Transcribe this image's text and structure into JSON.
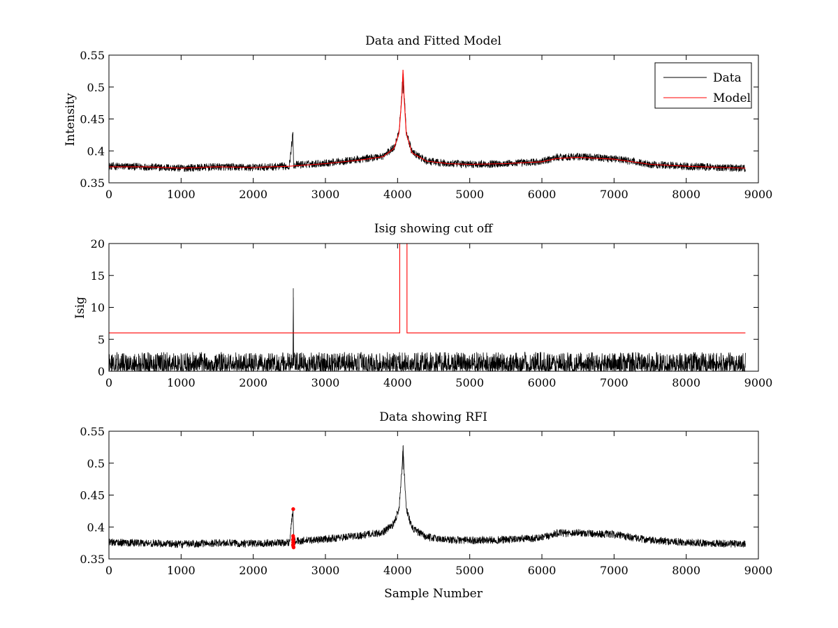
{
  "chart_data": [
    {
      "type": "line",
      "title": "Data and Fitted Model",
      "xlabel": "",
      "ylabel": "Intensity",
      "xlim": [
        0,
        9000
      ],
      "ylim": [
        0.35,
        0.55
      ],
      "xticks": [
        0,
        1000,
        2000,
        3000,
        4000,
        5000,
        6000,
        7000,
        8000,
        9000
      ],
      "xtick_labels": [
        "0",
        "1000",
        "2000",
        "3000",
        "4000",
        "5000",
        "6000",
        "7000",
        "8000",
        "9000"
      ],
      "yticks": [
        0.35,
        0.4,
        0.45,
        0.5,
        0.55
      ],
      "ytick_labels": [
        "0.35",
        "0.4",
        "0.45",
        "0.5",
        "0.55"
      ],
      "legend_position": "top-right",
      "series": [
        {
          "name": "Data",
          "color": "#000000",
          "x": [
            0,
            500,
            1000,
            1500,
            2000,
            2500,
            2550,
            2560,
            2600,
            3000,
            3500,
            3800,
            3950,
            4020,
            4060,
            4075,
            4090,
            4120,
            4200,
            4400,
            4700,
            5000,
            5500,
            6000,
            6200,
            6500,
            7000,
            7500,
            8000,
            8500,
            8820
          ],
          "values": [
            0.376,
            0.375,
            0.373,
            0.375,
            0.374,
            0.376,
            0.428,
            0.377,
            0.378,
            0.381,
            0.387,
            0.392,
            0.405,
            0.43,
            0.49,
            0.527,
            0.49,
            0.43,
            0.398,
            0.384,
            0.38,
            0.379,
            0.38,
            0.383,
            0.39,
            0.391,
            0.388,
            0.379,
            0.376,
            0.374,
            0.373
          ],
          "noise_amplitude": 0.006
        },
        {
          "name": "Model",
          "color": "#ff0000",
          "x": [
            0,
            500,
            1000,
            1500,
            2000,
            2500,
            3000,
            3500,
            3800,
            3950,
            4020,
            4060,
            4075,
            4090,
            4120,
            4200,
            4400,
            4700,
            5000,
            5500,
            6000,
            6200,
            6500,
            7000,
            7500,
            8000,
            8500,
            8820
          ],
          "values": [
            0.375,
            0.375,
            0.373,
            0.375,
            0.374,
            0.376,
            0.38,
            0.386,
            0.391,
            0.404,
            0.428,
            0.485,
            0.527,
            0.485,
            0.428,
            0.397,
            0.384,
            0.38,
            0.379,
            0.38,
            0.383,
            0.388,
            0.39,
            0.387,
            0.379,
            0.376,
            0.374,
            0.373
          ],
          "noise_amplitude": 0
        }
      ]
    },
    {
      "type": "line",
      "title": "Isig showing cut off",
      "xlabel": "",
      "ylabel": "Isig",
      "xlim": [
        0,
        9000
      ],
      "ylim": [
        0,
        20
      ],
      "xticks": [
        0,
        1000,
        2000,
        3000,
        4000,
        5000,
        6000,
        7000,
        8000,
        9000
      ],
      "xtick_labels": [
        "0",
        "1000",
        "2000",
        "3000",
        "4000",
        "5000",
        "6000",
        "7000",
        "8000",
        "9000"
      ],
      "yticks": [
        0,
        5,
        10,
        15,
        20
      ],
      "ytick_labels": [
        "0",
        "5",
        "10",
        "15",
        "20"
      ],
      "series": [
        {
          "name": "Isig",
          "color": "#000000",
          "x": [
            0,
            2550,
            2555,
            2560,
            8820
          ],
          "values": [
            0.9,
            0.9,
            13,
            0.9,
            0.9
          ],
          "noise_amplitude": 1.2
        },
        {
          "name": "Cut off",
          "color": "#ff0000",
          "x": [
            0,
            4030,
            4030,
            4130,
            4130,
            8820
          ],
          "values": [
            6,
            6,
            20,
            20,
            6,
            6
          ],
          "noise_amplitude": 0
        }
      ]
    },
    {
      "type": "line",
      "title": "Data showing RFI",
      "xlabel": "Sample Number",
      "ylabel": "",
      "xlim": [
        0,
        9000
      ],
      "ylim": [
        0.35,
        0.55
      ],
      "xticks": [
        0,
        1000,
        2000,
        3000,
        4000,
        5000,
        6000,
        7000,
        8000,
        9000
      ],
      "xtick_labels": [
        "0",
        "1000",
        "2000",
        "3000",
        "4000",
        "5000",
        "6000",
        "7000",
        "8000",
        "9000"
      ],
      "yticks": [
        0.35,
        0.4,
        0.45,
        0.5,
        0.55
      ],
      "ytick_labels": [
        "0.35",
        "0.4",
        "0.45",
        "0.5",
        "0.55"
      ],
      "series": [
        {
          "name": "Data",
          "color": "#000000",
          "x": [
            0,
            500,
            1000,
            1500,
            2000,
            2500,
            2550,
            2560,
            2600,
            3000,
            3500,
            3800,
            3950,
            4020,
            4060,
            4075,
            4090,
            4120,
            4200,
            4400,
            4700,
            5000,
            5500,
            6000,
            6200,
            6500,
            7000,
            7500,
            8000,
            8500,
            8820
          ],
          "values": [
            0.376,
            0.375,
            0.373,
            0.375,
            0.374,
            0.376,
            0.428,
            0.377,
            0.378,
            0.381,
            0.387,
            0.392,
            0.405,
            0.43,
            0.49,
            0.527,
            0.49,
            0.43,
            0.398,
            0.384,
            0.38,
            0.379,
            0.38,
            0.383,
            0.39,
            0.391,
            0.388,
            0.379,
            0.376,
            0.374,
            0.373
          ],
          "noise_amplitude": 0.006
        }
      ],
      "rfi_points": {
        "color": "#ff0000",
        "x": [
          2554,
          2552,
          2556,
          2550,
          2558,
          2553,
          2557,
          2551,
          2555,
          2559
        ],
        "values": [
          0.428,
          0.386,
          0.383,
          0.38,
          0.378,
          0.376,
          0.374,
          0.372,
          0.37,
          0.368
        ]
      }
    }
  ]
}
